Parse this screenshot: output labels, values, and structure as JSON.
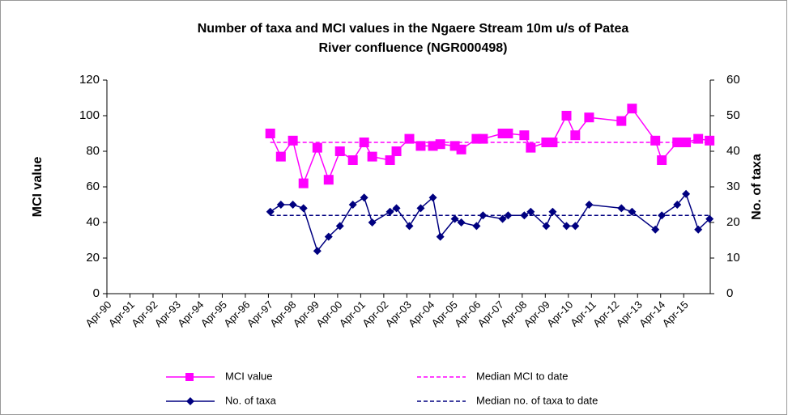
{
  "chart_data": {
    "type": "line",
    "title": [
      "Number of taxa and MCI values in the Ngaere Stream 10m u/s of Patea",
      "River confluence (NGR000498)"
    ],
    "ylabel": "MCI value",
    "y2label": "No. of taxa",
    "xlim": [
      1990.25,
      2016.4
    ],
    "xticks": [
      {
        "value": 1990.25,
        "label": "Apr-90"
      },
      {
        "value": 1991.25,
        "label": "Apr-91"
      },
      {
        "value": 1992.25,
        "label": "Apr-92"
      },
      {
        "value": 1993.25,
        "label": "Apr-93"
      },
      {
        "value": 1994.25,
        "label": "Apr-94"
      },
      {
        "value": 1995.25,
        "label": "Apr-95"
      },
      {
        "value": 1996.25,
        "label": "Apr-96"
      },
      {
        "value": 1997.25,
        "label": "Apr-97"
      },
      {
        "value": 1998.25,
        "label": "Apr-98"
      },
      {
        "value": 1999.25,
        "label": "Apr-99"
      },
      {
        "value": 2000.25,
        "label": "Apr-00"
      },
      {
        "value": 2001.25,
        "label": "Apr-01"
      },
      {
        "value": 2002.25,
        "label": "Apr-02"
      },
      {
        "value": 2003.25,
        "label": "Apr-03"
      },
      {
        "value": 2004.25,
        "label": "Apr-04"
      },
      {
        "value": 2005.25,
        "label": "Apr-05"
      },
      {
        "value": 2006.25,
        "label": "Apr-06"
      },
      {
        "value": 2007.25,
        "label": "Apr-07"
      },
      {
        "value": 2008.25,
        "label": "Apr-08"
      },
      {
        "value": 2009.25,
        "label": "Apr-09"
      },
      {
        "value": 2010.25,
        "label": "Apr-10"
      },
      {
        "value": 2011.25,
        "label": "Apr-11"
      },
      {
        "value": 2012.25,
        "label": "Apr-12"
      },
      {
        "value": 2013.25,
        "label": "Apr-13"
      },
      {
        "value": 2014.25,
        "label": "Apr-14"
      },
      {
        "value": 2015.25,
        "label": "Apr-15"
      }
    ],
    "ylim": [
      0,
      120
    ],
    "yticks": [
      0,
      20,
      40,
      60,
      80,
      100,
      120
    ],
    "y2lim": [
      0,
      60
    ],
    "y2ticks": [
      0,
      10,
      20,
      30,
      40,
      50,
      60
    ],
    "grid": false,
    "legend": "bottom",
    "series": [
      {
        "name": "MCI value",
        "color": "#ff00ff",
        "marker": "square",
        "axis": "y",
        "x": [
          1997.33,
          1997.79,
          1998.31,
          1998.77,
          1999.37,
          1999.86,
          2000.35,
          2000.91,
          2001.4,
          2001.75,
          2002.52,
          2002.8,
          2003.36,
          2003.85,
          2004.38,
          2004.7,
          2005.33,
          2005.61,
          2006.27,
          2006.55,
          2007.4,
          2007.64,
          2008.34,
          2008.62,
          2009.29,
          2009.57,
          2010.17,
          2010.55,
          2011.15,
          2012.55,
          2013.01,
          2014.02,
          2014.3,
          2014.97,
          2015.35,
          2015.88,
          2016.37
        ],
        "values": [
          90,
          77,
          86,
          62,
          82,
          64,
          80,
          75,
          85,
          77,
          75,
          80,
          87,
          83,
          83,
          84,
          83,
          81,
          87,
          87,
          90,
          90,
          89,
          82,
          85,
          85,
          100,
          89,
          99,
          97,
          104,
          86,
          75,
          85,
          85,
          87,
          86
        ]
      },
      {
        "name": "Median MCI to date",
        "color": "#ff00ff",
        "dashed": true,
        "axis": "y",
        "x": [
          1997.33,
          2016.37
        ],
        "values": [
          85,
          85
        ]
      },
      {
        "name": "No. of taxa",
        "color": "#000080",
        "marker": "diamond",
        "axis": "y2",
        "x": [
          1997.33,
          1997.79,
          1998.31,
          1998.77,
          1999.37,
          1999.86,
          2000.35,
          2000.91,
          2001.4,
          2001.75,
          2002.52,
          2002.8,
          2003.36,
          2003.85,
          2004.38,
          2004.7,
          2005.33,
          2005.61,
          2006.27,
          2006.55,
          2007.4,
          2007.64,
          2008.34,
          2008.62,
          2009.29,
          2009.57,
          2010.17,
          2010.55,
          2011.15,
          2012.55,
          2013.01,
          2014.02,
          2014.3,
          2014.97,
          2015.35,
          2015.88,
          2016.37
        ],
        "values": [
          23,
          25,
          25,
          24,
          12,
          16,
          19,
          25,
          27,
          20,
          23,
          24,
          19,
          24,
          27,
          16,
          21,
          20,
          19,
          22,
          21,
          22,
          22,
          23,
          19,
          23,
          19,
          19,
          25,
          24,
          23,
          18,
          22,
          25,
          28,
          18,
          21
        ]
      },
      {
        "name": "Median no. of taxa to date",
        "color": "#000080",
        "dashed": true,
        "axis": "y2",
        "x": [
          1997.33,
          2016.37
        ],
        "values": [
          22,
          22
        ]
      }
    ]
  }
}
